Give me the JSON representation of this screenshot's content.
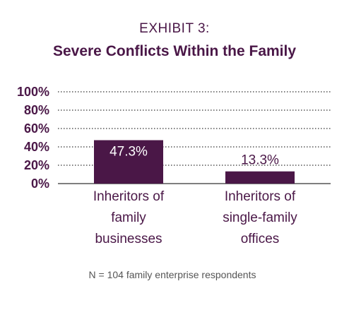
{
  "exhibit_label": "EXHIBIT 3:",
  "chart_data": {
    "type": "bar",
    "title": "Severe Conflicts Within the Family",
    "categories": [
      [
        "Inheritors of",
        "family",
        "businesses"
      ],
      [
        "Inheritors of",
        "single-family",
        "offices"
      ]
    ],
    "values": [
      47.3,
      13.3
    ],
    "data_labels": [
      "47.3%",
      "13.3%"
    ],
    "yticks": [
      {
        "value": 100,
        "label": "100%"
      },
      {
        "value": 80,
        "label": "80%"
      },
      {
        "value": 60,
        "label": "60%"
      },
      {
        "value": 40,
        "label": "40%"
      },
      {
        "value": 20,
        "label": "20%"
      },
      {
        "value": 0,
        "label": "0%"
      }
    ],
    "ylim": [
      0,
      100
    ],
    "grid": true,
    "bar_color": "#4a1747",
    "label_inside_color": "#ffffff",
    "label_outside_color": "#4a1747"
  },
  "footnote": "N = 104 family enterprise respondents"
}
